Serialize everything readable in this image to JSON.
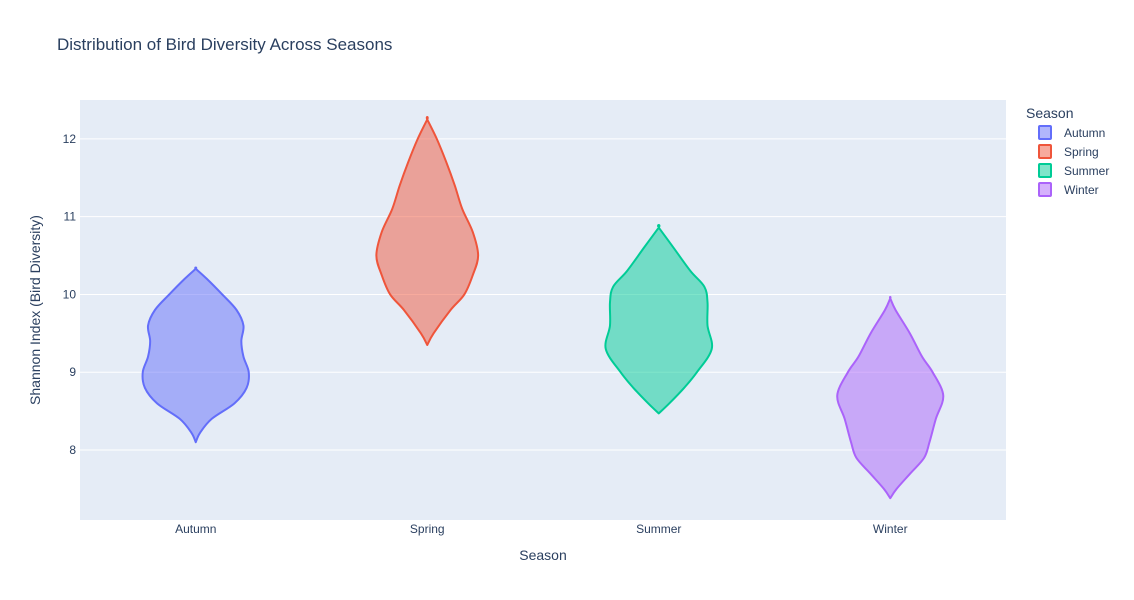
{
  "chart_data": {
    "type": "violin",
    "title": "Distribution of Bird Diversity Across Seasons",
    "xlabel": "Season",
    "ylabel": "Shannon Index (Bird Diversity)",
    "ylim": [
      7.1,
      12.5
    ],
    "yticks": [
      8,
      9,
      10,
      11,
      12
    ],
    "grid": true,
    "legend": {
      "title": "Season",
      "placement": "top-right"
    },
    "categories": [
      "Autumn",
      "Spring",
      "Summer",
      "Winter"
    ],
    "series": [
      {
        "name": "Autumn",
        "color": "#636efa",
        "min": 8.1,
        "max": 10.33,
        "profile": [
          [
            8.1,
            0.0
          ],
          [
            8.22,
            0.08
          ],
          [
            8.4,
            0.3
          ],
          [
            8.6,
            0.73
          ],
          [
            8.8,
            0.96
          ],
          [
            9.0,
            1.0
          ],
          [
            9.2,
            0.9
          ],
          [
            9.4,
            0.86
          ],
          [
            9.6,
            0.9
          ],
          [
            9.8,
            0.77
          ],
          [
            10.0,
            0.5
          ],
          [
            10.2,
            0.21
          ],
          [
            10.33,
            0.0
          ]
        ]
      },
      {
        "name": "Spring",
        "color": "#ef553b",
        "min": 9.35,
        "max": 12.25,
        "profile": [
          [
            9.35,
            0.0
          ],
          [
            9.5,
            0.12
          ],
          [
            9.8,
            0.44
          ],
          [
            10.0,
            0.7
          ],
          [
            10.25,
            0.86
          ],
          [
            10.5,
            0.96
          ],
          [
            10.8,
            0.86
          ],
          [
            11.1,
            0.66
          ],
          [
            11.4,
            0.52
          ],
          [
            11.7,
            0.36
          ],
          [
            12.0,
            0.18
          ],
          [
            12.25,
            0.0
          ]
        ]
      },
      {
        "name": "Summer",
        "color": "#00cc96",
        "min": 8.47,
        "max": 10.86,
        "profile": [
          [
            8.47,
            0.0
          ],
          [
            8.6,
            0.2
          ],
          [
            8.8,
            0.48
          ],
          [
            9.0,
            0.72
          ],
          [
            9.3,
            1.0
          ],
          [
            9.6,
            0.92
          ],
          [
            9.9,
            0.92
          ],
          [
            10.1,
            0.86
          ],
          [
            10.3,
            0.6
          ],
          [
            10.6,
            0.28
          ],
          [
            10.86,
            0.0
          ]
        ]
      },
      {
        "name": "Winter",
        "color": "#ab63fa",
        "min": 7.38,
        "max": 9.95,
        "profile": [
          [
            7.38,
            0.0
          ],
          [
            7.5,
            0.12
          ],
          [
            7.7,
            0.38
          ],
          [
            7.9,
            0.64
          ],
          [
            8.1,
            0.74
          ],
          [
            8.4,
            0.86
          ],
          [
            8.7,
            1.0
          ],
          [
            9.0,
            0.8
          ],
          [
            9.2,
            0.6
          ],
          [
            9.5,
            0.37
          ],
          [
            9.8,
            0.1
          ],
          [
            9.95,
            0.0
          ]
        ]
      }
    ]
  }
}
